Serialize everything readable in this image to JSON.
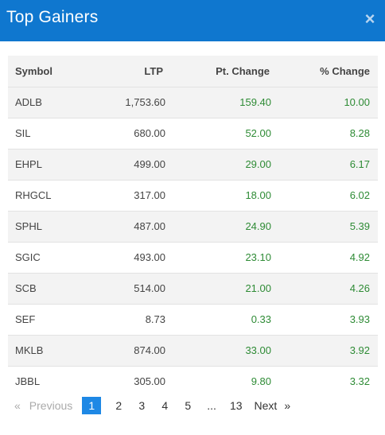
{
  "header": {
    "title": "Top Gainers",
    "close_icon": "×"
  },
  "columns": [
    "Symbol",
    "LTP",
    "Pt. Change",
    "% Change"
  ],
  "rows": [
    [
      "ADLB",
      "1,753.60",
      "159.40",
      "10.00"
    ],
    [
      "SIL",
      "680.00",
      "52.00",
      "8.28"
    ],
    [
      "EHPL",
      "499.00",
      "29.00",
      "6.17"
    ],
    [
      "RHGCL",
      "317.00",
      "18.00",
      "6.02"
    ],
    [
      "SPHL",
      "487.00",
      "24.90",
      "5.39"
    ],
    [
      "SGIC",
      "493.00",
      "23.10",
      "4.92"
    ],
    [
      "SCB",
      "514.00",
      "21.00",
      "4.26"
    ],
    [
      "SEF",
      "8.73",
      "0.33",
      "3.93"
    ],
    [
      "MKLB",
      "874.00",
      "33.00",
      "3.92"
    ],
    [
      "JBBL",
      "305.00",
      "9.80",
      "3.32"
    ]
  ],
  "pagination": {
    "prev_arrow": "«",
    "prev_label": "Previous",
    "pages": [
      "1",
      "2",
      "3",
      "4",
      "5"
    ],
    "ellipsis": "...",
    "last_page": "13",
    "next_label": "Next",
    "next_arrow": "»",
    "active_page": "1"
  },
  "colors": {
    "header_bg": "#0f77cf",
    "positive": "#2e8b35",
    "active_page_bg": "#1e88e5"
  }
}
